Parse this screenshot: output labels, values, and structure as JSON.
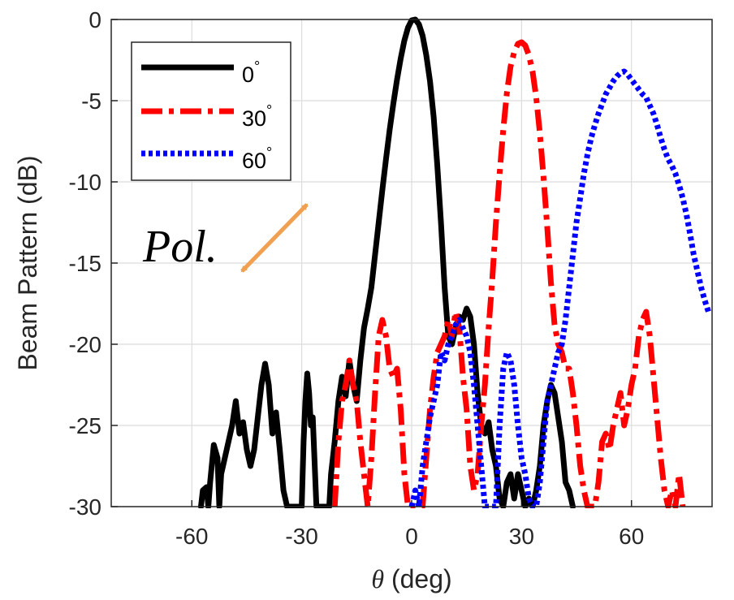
{
  "chart_data": {
    "type": "line",
    "title": "",
    "xlabel_symbol": "θ",
    "xlabel_rest": " (deg)",
    "ylabel": "Beam Pattern (dB)",
    "xlim": [
      -82,
      82
    ],
    "ylim": [
      -30,
      0
    ],
    "xticks": [
      -60,
      -30,
      0,
      30,
      60
    ],
    "yticks": [
      0,
      -5,
      -10,
      -15,
      -20,
      -25,
      -30
    ],
    "grid": true,
    "legend_position": "top-left",
    "annotation": "Pol.",
    "annotation_color": "#f0a050",
    "series": [
      {
        "name": "0°",
        "label_num": "0",
        "label_sup": "°",
        "color": "#000000",
        "style": "solid",
        "points": [
          [
            -57.5,
            -30
          ],
          [
            -57,
            -29
          ],
          [
            -56,
            -28.8
          ],
          [
            -55.5,
            -30
          ],
          [
            -55,
            -28.5
          ],
          [
            -54,
            -26.2
          ],
          [
            -53,
            -27
          ],
          [
            -52.5,
            -30
          ],
          [
            -52,
            -28
          ],
          [
            -51,
            -27
          ],
          [
            -50,
            -26
          ],
          [
            -49,
            -25
          ],
          [
            -48,
            -23.5
          ],
          [
            -47,
            -25.5
          ],
          [
            -46,
            -24.8
          ],
          [
            -45,
            -26.5
          ],
          [
            -44,
            -27.5
          ],
          [
            -43,
            -26.5
          ],
          [
            -42,
            -24.5
          ],
          [
            -41,
            -22.5
          ],
          [
            -40,
            -21.2
          ],
          [
            -39,
            -22.5
          ],
          [
            -38,
            -25.5
          ],
          [
            -37,
            -24.2
          ],
          [
            -36,
            -26.5
          ],
          [
            -35,
            -29
          ],
          [
            -34,
            -30
          ],
          [
            -30,
            -30
          ],
          [
            -29.5,
            -26
          ],
          [
            -29,
            -23.5
          ],
          [
            -28.5,
            -21.8
          ],
          [
            -28,
            -23
          ],
          [
            -27.5,
            -25
          ],
          [
            -27,
            -24.5
          ],
          [
            -26,
            -30
          ],
          [
            -22.5,
            -30
          ],
          [
            -22,
            -28
          ],
          [
            -21,
            -26
          ],
          [
            -20,
            -23.5
          ],
          [
            -19,
            -22
          ],
          [
            -18,
            -23.2
          ],
          [
            -17,
            -21
          ],
          [
            -16,
            -22.5
          ],
          [
            -15,
            -23.5
          ],
          [
            -14,
            -21
          ],
          [
            -13,
            -19
          ],
          [
            -12,
            -17.8
          ],
          [
            -11,
            -16.5
          ],
          [
            -10,
            -14.5
          ],
          [
            -9,
            -12.5
          ],
          [
            -8,
            -10.5
          ],
          [
            -7,
            -8.6
          ],
          [
            -6,
            -6.8
          ],
          [
            -5,
            -5.2
          ],
          [
            -4,
            -3.7
          ],
          [
            -3,
            -2.4
          ],
          [
            -2,
            -1.3
          ],
          [
            -1,
            -0.5
          ],
          [
            0,
            -0.05
          ],
          [
            1,
            0
          ],
          [
            2,
            -0.3
          ],
          [
            3,
            -1.0
          ],
          [
            4,
            -2.2
          ],
          [
            5,
            -3.8
          ],
          [
            6,
            -6.0
          ],
          [
            7,
            -9.0
          ],
          [
            8,
            -12.5
          ],
          [
            9,
            -16.5
          ],
          [
            10,
            -19.5
          ],
          [
            11,
            -20
          ],
          [
            12,
            -19
          ],
          [
            13,
            -18.3
          ],
          [
            14,
            -18.5
          ],
          [
            15,
            -17.8
          ],
          [
            16,
            -18.3
          ],
          [
            17,
            -20
          ],
          [
            18,
            -23
          ],
          [
            19,
            -25
          ],
          [
            20,
            -25.5
          ],
          [
            21,
            -24.8
          ],
          [
            22,
            -26.5
          ],
          [
            23,
            -27.5
          ],
          [
            24,
            -29.5
          ],
          [
            25,
            -30
          ],
          [
            26,
            -28.5
          ],
          [
            27,
            -28
          ],
          [
            28,
            -29.5
          ],
          [
            29,
            -28
          ],
          [
            30,
            -29
          ],
          [
            31,
            -30
          ],
          [
            32,
            -29.5
          ],
          [
            33,
            -30
          ],
          [
            34,
            -29
          ],
          [
            35,
            -27.5
          ],
          [
            36,
            -25
          ],
          [
            37,
            -23.5
          ],
          [
            38,
            -22.5
          ],
          [
            39,
            -23
          ],
          [
            40,
            -24.5
          ],
          [
            41,
            -26
          ],
          [
            42,
            -28.5
          ],
          [
            43,
            -29
          ],
          [
            44,
            -30
          ]
        ]
      },
      {
        "name": "30°",
        "label_num": "30",
        "label_sup": "°",
        "color": "#ff0000",
        "style": "dashdot",
        "points": [
          [
            -21,
            -30
          ],
          [
            -20,
            -26
          ],
          [
            -19,
            -23.5
          ],
          [
            -18,
            -22.5
          ],
          [
            -17,
            -21
          ],
          [
            -16,
            -22.5
          ],
          [
            -15,
            -23.5
          ],
          [
            -14,
            -26
          ],
          [
            -13,
            -28
          ],
          [
            -12,
            -30
          ],
          [
            -11,
            -27
          ],
          [
            -10,
            -23
          ],
          [
            -9,
            -19.5
          ],
          [
            -8,
            -18.5
          ],
          [
            -7,
            -19.5
          ],
          [
            -6,
            -21.5
          ],
          [
            -5,
            -22
          ],
          [
            -4,
            -21.5
          ],
          [
            -3,
            -24
          ],
          [
            -2,
            -28
          ],
          [
            -1,
            -30
          ],
          [
            3,
            -30
          ],
          [
            4,
            -27
          ],
          [
            5,
            -24
          ],
          [
            6,
            -22
          ],
          [
            7,
            -20.5
          ],
          [
            8,
            -20
          ],
          [
            9,
            -19.5
          ],
          [
            10,
            -18.5
          ],
          [
            11,
            -19.5
          ],
          [
            12,
            -18
          ],
          [
            13,
            -19
          ],
          [
            14,
            -22
          ],
          [
            15,
            -24
          ],
          [
            16,
            -27.5
          ],
          [
            17,
            -29
          ],
          [
            18,
            -28
          ],
          [
            19,
            -25
          ],
          [
            20,
            -22.5
          ],
          [
            21,
            -19
          ],
          [
            22,
            -16
          ],
          [
            23,
            -12.5
          ],
          [
            24,
            -9.5
          ],
          [
            25,
            -6.8
          ],
          [
            26,
            -4.5
          ],
          [
            27,
            -2.9
          ],
          [
            28,
            -2.0
          ],
          [
            29,
            -1.5
          ],
          [
            30,
            -1.4
          ],
          [
            31,
            -1.6
          ],
          [
            32,
            -2.2
          ],
          [
            33,
            -3.2
          ],
          [
            34,
            -4.8
          ],
          [
            35,
            -7.0
          ],
          [
            36,
            -9.7
          ],
          [
            37,
            -12.8
          ],
          [
            38,
            -16.2
          ],
          [
            39,
            -18.8
          ],
          [
            40,
            -20
          ],
          [
            41,
            -20.5
          ],
          [
            42,
            -21.5
          ],
          [
            43,
            -21.5
          ],
          [
            44,
            -23
          ],
          [
            45,
            -25
          ],
          [
            46,
            -27.5
          ],
          [
            47,
            -29
          ],
          [
            48,
            -30
          ],
          [
            50,
            -30
          ],
          [
            51,
            -28.5
          ],
          [
            52,
            -26
          ],
          [
            53,
            -25.5
          ],
          [
            54,
            -26.5
          ],
          [
            55,
            -25
          ],
          [
            56,
            -24
          ],
          [
            57,
            -23
          ],
          [
            58,
            -25
          ],
          [
            59,
            -24
          ],
          [
            60,
            -22.5
          ],
          [
            61,
            -21.5
          ],
          [
            62,
            -19.5
          ],
          [
            63,
            -18.5
          ],
          [
            64,
            -18
          ],
          [
            65,
            -19.5
          ],
          [
            66,
            -22
          ],
          [
            67,
            -24.5
          ],
          [
            68,
            -27
          ],
          [
            69,
            -29
          ],
          [
            70,
            -30
          ],
          [
            71,
            -29
          ],
          [
            72,
            -30
          ],
          [
            73,
            -28
          ],
          [
            74,
            -30
          ]
        ]
      },
      {
        "name": "60°",
        "label_num": "60",
        "label_sup": "°",
        "color": "#0000ff",
        "style": "dotted",
        "points": [
          [
            0,
            -30
          ],
          [
            1,
            -29
          ],
          [
            2,
            -30
          ],
          [
            3,
            -27.5
          ],
          [
            4,
            -26
          ],
          [
            5,
            -24.5
          ],
          [
            6,
            -23.5
          ],
          [
            7,
            -22.5
          ],
          [
            8,
            -20.5
          ],
          [
            9,
            -21
          ],
          [
            10,
            -20
          ],
          [
            11,
            -19.5
          ],
          [
            12,
            -18.8
          ],
          [
            13,
            -18.5
          ],
          [
            14,
            -19
          ],
          [
            15,
            -19.5
          ],
          [
            16,
            -20.5
          ],
          [
            17,
            -22.5
          ],
          [
            18,
            -25
          ],
          [
            19,
            -27.5
          ],
          [
            20,
            -30
          ],
          [
            23,
            -30
          ],
          [
            24,
            -25
          ],
          [
            25,
            -21.5
          ],
          [
            26,
            -20.5
          ],
          [
            27,
            -21
          ],
          [
            28,
            -22.5
          ],
          [
            29,
            -25
          ],
          [
            30,
            -27
          ],
          [
            31,
            -28
          ],
          [
            32,
            -29.5
          ],
          [
            33,
            -30
          ],
          [
            34,
            -30
          ],
          [
            35,
            -28.5
          ],
          [
            36,
            -26
          ],
          [
            37,
            -23.5
          ],
          [
            38,
            -22.5
          ],
          [
            39,
            -21.5
          ],
          [
            40,
            -20.5
          ],
          [
            41,
            -20
          ],
          [
            42,
            -18.5
          ],
          [
            43,
            -16.5
          ],
          [
            44,
            -14.5
          ],
          [
            45,
            -12.5
          ],
          [
            46,
            -11
          ],
          [
            47,
            -9.5
          ],
          [
            48,
            -8.3
          ],
          [
            49,
            -7.3
          ],
          [
            50,
            -6.5
          ],
          [
            51,
            -5.8
          ],
          [
            52,
            -5.2
          ],
          [
            53,
            -4.6
          ],
          [
            54,
            -4.2
          ],
          [
            55,
            -3.8
          ],
          [
            56,
            -3.5
          ],
          [
            57,
            -3.3
          ],
          [
            58,
            -3.2
          ],
          [
            59,
            -3.4
          ],
          [
            60,
            -3.7
          ],
          [
            61,
            -4.0
          ],
          [
            62,
            -4.3
          ],
          [
            63,
            -4.6
          ],
          [
            64,
            -4.8
          ],
          [
            65,
            -5.3
          ],
          [
            66,
            -5.8
          ],
          [
            67,
            -6.5
          ],
          [
            68,
            -7.3
          ],
          [
            69,
            -8.0
          ],
          [
            70,
            -8.6
          ],
          [
            71,
            -9.0
          ],
          [
            72,
            -9.5
          ],
          [
            73,
            -10.2
          ],
          [
            74,
            -11.0
          ],
          [
            75,
            -12.0
          ],
          [
            76,
            -13.2
          ],
          [
            77,
            -14.5
          ],
          [
            78,
            -15.5
          ],
          [
            79,
            -16.5
          ],
          [
            80,
            -17.3
          ],
          [
            81,
            -18
          ]
        ]
      }
    ]
  }
}
